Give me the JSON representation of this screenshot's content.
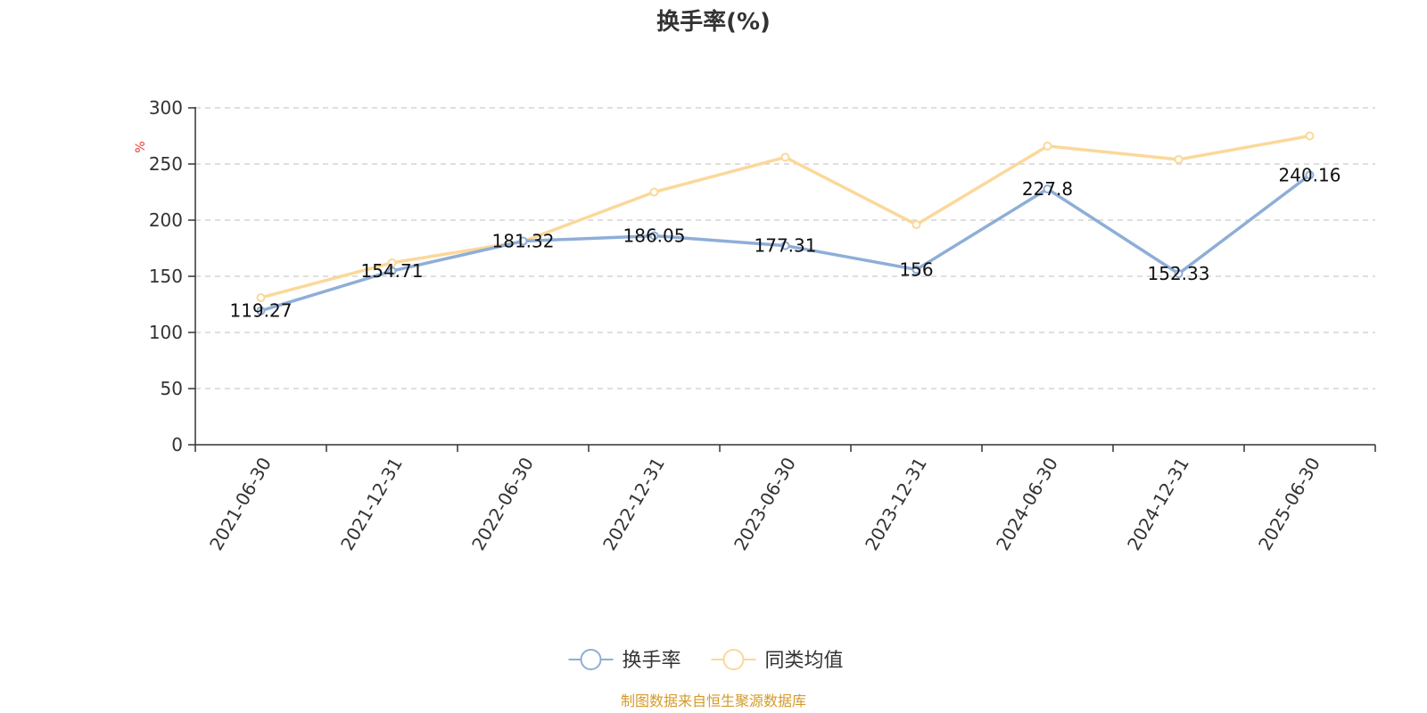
{
  "chart_data": {
    "type": "line",
    "title": "换手率(%)",
    "y_unit": "%",
    "ylim": [
      0,
      300
    ],
    "y_ticks": [
      0,
      50,
      100,
      150,
      200,
      250,
      300
    ],
    "grid": true,
    "legend_position": "bottom-center",
    "categories": [
      "2021-06-30",
      "2021-12-31",
      "2022-06-30",
      "2022-12-31",
      "2023-06-30",
      "2023-12-31",
      "2024-06-30",
      "2024-12-31",
      "2025-06-30"
    ],
    "series": [
      {
        "name": "换手率",
        "color": "#8eaed8",
        "show_labels": true,
        "values": [
          119.27,
          154.71,
          181.32,
          186.05,
          177.31,
          156,
          227.8,
          152.33,
          240.16
        ]
      },
      {
        "name": "同类均值",
        "color": "#fbd89a",
        "show_labels": false,
        "values": [
          131,
          162,
          181,
          225,
          256,
          196,
          266,
          254,
          275
        ]
      }
    ]
  },
  "source_note": "制图数据来自恒生聚源数据库",
  "colors": {
    "axis": "#333333",
    "grid": "#cccccc",
    "unit": "#e8382e",
    "source": "#d49a2a"
  }
}
